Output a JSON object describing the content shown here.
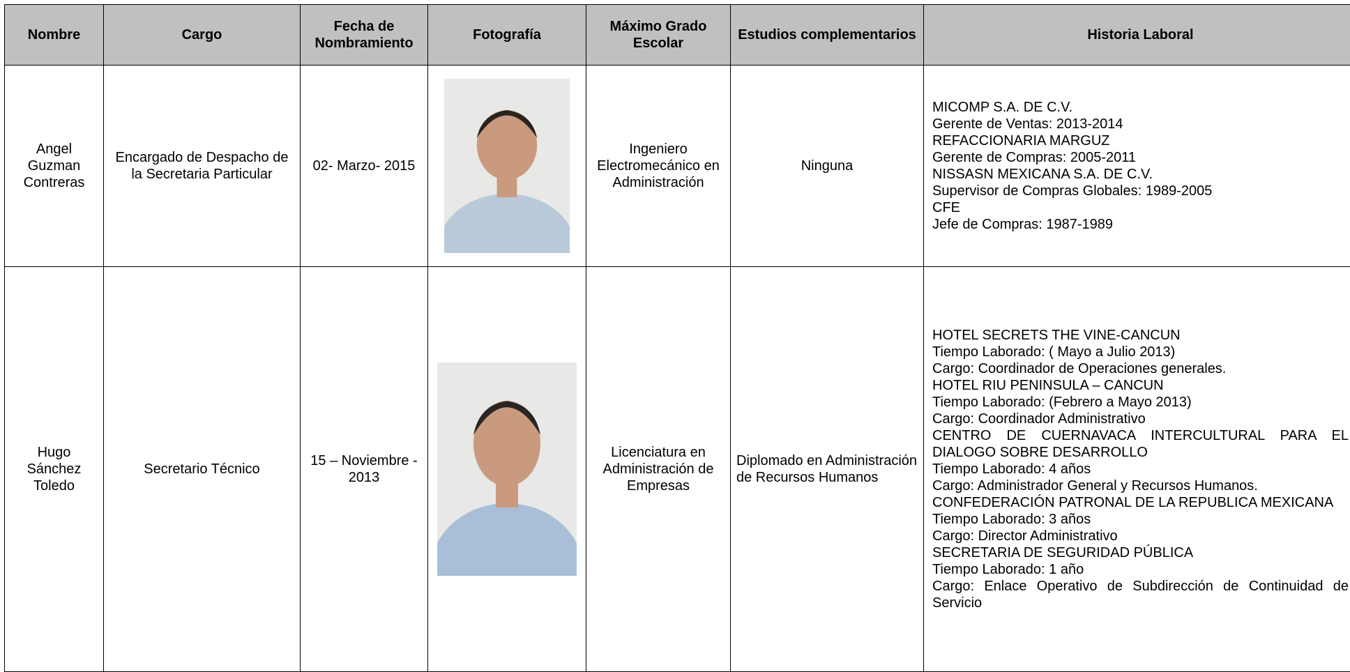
{
  "table": {
    "header": [
      "Nombre",
      "Cargo",
      "Fecha de Nombramiento",
      "Fotografía",
      "Máximo Grado Escolar",
      "Estudios complementarios",
      "Historia Laboral"
    ],
    "rows": [
      {
        "nombre": "Angel Guzman Contreras",
        "cargo": "Encargado de Despacho de la Secretaria Particular",
        "fecha": "02- Marzo- 2015",
        "grado": "Ingeniero Electromecánico en Administración",
        "estudios": "Ninguna",
        "historia": [
          "MICOMP S.A. DE C.V.",
          "Gerente de Ventas: 2013-2014",
          "REFACCIONARIA MARGUZ",
          "Gerente de Compras: 2005-2011",
          "NISSASN MEXICANA S.A. DE C.V.",
          "Supervisor de Compras Globales: 1989-2005",
          "CFE",
          "Jefe de Compras: 1987-1989"
        ]
      },
      {
        "nombre": "Hugo Sánchez Toledo",
        "cargo": "Secretario Técnico",
        "fecha": "15 – Noviembre - 2013",
        "grado": "Licenciatura en Administración de Empresas",
        "estudios": "Diplomado en Administración de Recursos Humanos",
        "historia": [
          "HOTEL SECRETS THE VINE-CANCUN",
          "Tiempo Laborado: ( Mayo a Julio 2013)",
          "Cargo: Coordinador de Operaciones generales.",
          "HOTEL RIU PENINSULA – CANCUN",
          "Tiempo Laborado: (Febrero a Mayo 2013)",
          "Cargo: Coordinador Administrativo",
          "CENTRO DE CUERNAVACA INTERCULTURAL PARA EL DIALOGO SOBRE DESARROLLO",
          "Tiempo Laborado: 4 años",
          "Cargo: Administrador General y Recursos Humanos.",
          "CONFEDERACIÓN PATRONAL DE LA REPUBLICA MEXICANA",
          "Tiempo Laborado: 3 años",
          "Cargo: Director Administrativo",
          "SECRETARIA DE SEGURIDAD PÚBLICA",
          "Tiempo Laborado: 1 año",
          "Cargo: Enlace Operativo de Subdirección de Continuidad de Servicio"
        ]
      }
    ]
  }
}
